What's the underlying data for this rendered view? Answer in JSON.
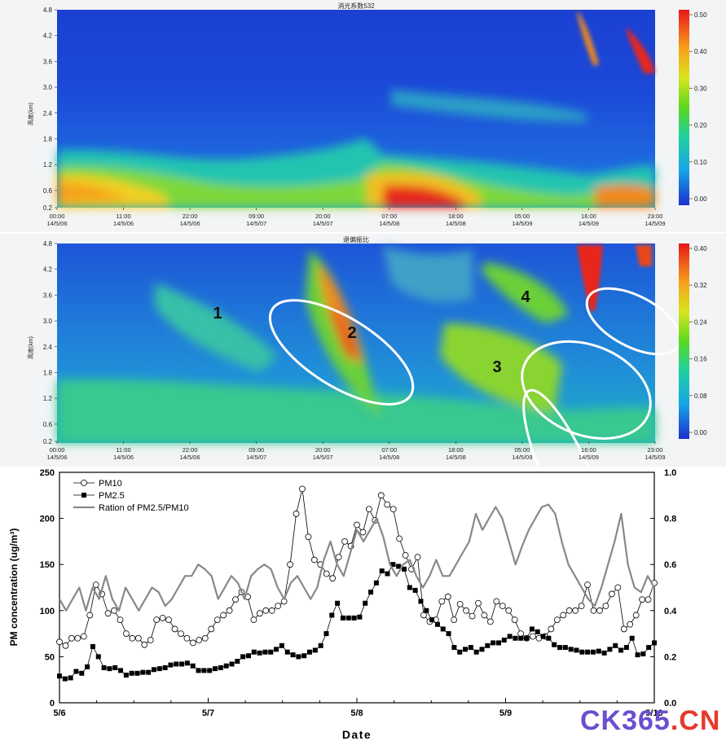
{
  "lidar_panels": [
    {
      "title": "消光系数532",
      "ylabel": "高度(km)",
      "yticks": [
        "4.8",
        "4.2",
        "3.6",
        "3.0",
        "2.4",
        "1.8",
        "1.2",
        "0.6",
        "0.2"
      ],
      "xticks": [
        {
          "t": "00:00",
          "d": "14/5/06"
        },
        {
          "t": "11:00",
          "d": "14/5/06"
        },
        {
          "t": "22:00",
          "d": "14/5/06"
        },
        {
          "t": "09:00",
          "d": "14/5/07"
        },
        {
          "t": "20:00",
          "d": "14/5/07"
        },
        {
          "t": "07:00",
          "d": "14/5/08"
        },
        {
          "t": "18:00",
          "d": "14/5/08"
        },
        {
          "t": "05:00",
          "d": "14/5/09"
        },
        {
          "t": "16:00",
          "d": "14/5/09"
        },
        {
          "t": "23:00",
          "d": "14/5/09"
        }
      ],
      "colorbar_ticks": [
        "0.50",
        "0.40",
        "0.30",
        "0.20",
        "0.10",
        "0.00"
      ]
    },
    {
      "title": "退偏振比",
      "ylabel": "高度(km)",
      "yticks": [
        "4.8",
        "4.2",
        "3.6",
        "3.0",
        "2.4",
        "1.8",
        "1.2",
        "0.6",
        "0.2"
      ],
      "xticks": [
        {
          "t": "00:00",
          "d": "14/5/06"
        },
        {
          "t": "11:00",
          "d": "14/5/06"
        },
        {
          "t": "22:00",
          "d": "14/5/06"
        },
        {
          "t": "09:00",
          "d": "14/5/07"
        },
        {
          "t": "20:00",
          "d": "14/5/07"
        },
        {
          "t": "07:00",
          "d": "14/5/08"
        },
        {
          "t": "18:00",
          "d": "14/5/08"
        },
        {
          "t": "05:00",
          "d": "14/5/09"
        },
        {
          "t": "16:00",
          "d": "14/5/09"
        },
        {
          "t": "23:00",
          "d": "14/5/09"
        }
      ],
      "colorbar_ticks": [
        "0.40",
        "0.32",
        "0.24",
        "0.16",
        "0.08",
        "0.00"
      ],
      "region_labels": [
        "1",
        "2",
        "3",
        "4"
      ]
    }
  ],
  "chart_data": {
    "type": "line",
    "xlabel": "Date",
    "ylabel": "PM concentration (ug/m³)",
    "xlim": [
      0,
      4
    ],
    "xticks": [
      {
        "v": 0,
        "label": "5/6"
      },
      {
        "v": 1,
        "label": "5/7"
      },
      {
        "v": 2,
        "label": "5/8"
      },
      {
        "v": 3,
        "label": "5/9"
      },
      {
        "v": 4,
        "label": "5/10"
      }
    ],
    "ylim": [
      0,
      250
    ],
    "yticks": [
      0,
      50,
      100,
      150,
      200,
      250
    ],
    "y2lim": [
      0,
      1.0
    ],
    "y2ticks": [
      "0.0",
      "0.2",
      "0.4",
      "0.6",
      "0.8",
      "1.0"
    ],
    "legend_position": "top-left",
    "series": [
      {
        "name": "PM10",
        "axis": "left",
        "marker": "open-circle",
        "color": "#000000",
        "values": [
          66,
          62,
          70,
          70,
          72,
          95,
          128,
          118,
          97,
          100,
          90,
          75,
          70,
          70,
          63,
          68,
          90,
          92,
          90,
          80,
          75,
          70,
          65,
          68,
          70,
          80,
          90,
          95,
          100,
          112,
          120,
          115,
          90,
          97,
          100,
          100,
          105,
          110,
          150,
          205,
          232,
          180,
          155,
          150,
          140,
          135,
          158,
          175,
          170,
          193,
          185,
          210,
          198,
          225,
          215,
          210,
          178,
          160,
          145,
          158,
          95,
          88,
          90,
          110,
          115,
          90,
          107,
          100,
          94,
          108,
          95,
          88,
          110,
          105,
          100,
          90,
          75,
          70,
          72,
          70,
          72,
          80,
          90,
          95,
          100,
          100,
          105,
          128,
          100,
          100,
          105,
          118,
          125,
          80,
          85,
          95,
          112,
          112,
          130
        ]
      },
      {
        "name": "PM2.5",
        "axis": "left",
        "marker": "filled-square",
        "color": "#000000",
        "values": [
          29,
          26,
          27,
          34,
          32,
          39,
          61,
          50,
          38,
          37,
          38,
          35,
          30,
          32,
          32,
          33,
          33,
          36,
          37,
          38,
          41,
          42,
          42,
          43,
          40,
          35,
          35,
          35,
          37,
          38,
          40,
          42,
          45,
          50,
          51,
          55,
          54,
          55,
          55,
          58,
          62,
          55,
          52,
          50,
          51,
          55,
          57,
          62,
          75,
          95,
          108,
          92,
          92,
          92,
          93,
          108,
          120,
          130,
          143,
          140,
          150,
          148,
          145,
          125,
          122,
          110,
          100,
          90,
          85,
          80,
          75,
          60,
          55,
          58,
          60,
          55,
          58,
          62,
          65,
          65,
          68,
          72,
          70,
          70,
          70,
          80,
          77,
          72,
          70,
          63,
          60,
          60,
          58,
          57,
          55,
          55,
          55,
          56,
          54,
          58,
          62,
          57,
          60,
          70,
          52,
          53,
          60,
          65
        ]
      },
      {
        "name": "Ration of PM2.5/PM10",
        "axis": "right",
        "marker": "none",
        "color": "#888888",
        "values": [
          0.45,
          0.4,
          0.45,
          0.5,
          0.4,
          0.5,
          0.45,
          0.55,
          0.45,
          0.4,
          0.5,
          0.45,
          0.4,
          0.45,
          0.5,
          0.48,
          0.42,
          0.45,
          0.5,
          0.55,
          0.55,
          0.6,
          0.58,
          0.55,
          0.45,
          0.5,
          0.55,
          0.52,
          0.45,
          0.55,
          0.58,
          0.6,
          0.58,
          0.5,
          0.45,
          0.52,
          0.55,
          0.5,
          0.45,
          0.5,
          0.62,
          0.7,
          0.6,
          0.55,
          0.65,
          0.75,
          0.7,
          0.75,
          0.8,
          0.72,
          0.6,
          0.55,
          0.6,
          0.62,
          0.55,
          0.5,
          0.55,
          0.62,
          0.55,
          0.55,
          0.6,
          0.65,
          0.7,
          0.82,
          0.75,
          0.8,
          0.85,
          0.8,
          0.7,
          0.6,
          0.68,
          0.75,
          0.8,
          0.85,
          0.86,
          0.82,
          0.7,
          0.6,
          0.55,
          0.5,
          0.45,
          0.42,
          0.5,
          0.6,
          0.7,
          0.82,
          0.6,
          0.5,
          0.48,
          0.55,
          0.5
        ]
      }
    ]
  },
  "watermark": {
    "text": "CK365",
    "dot": ".",
    "suffix": "CN",
    "color_main": "#6b4fd0",
    "color_accent": "#e8382b"
  }
}
